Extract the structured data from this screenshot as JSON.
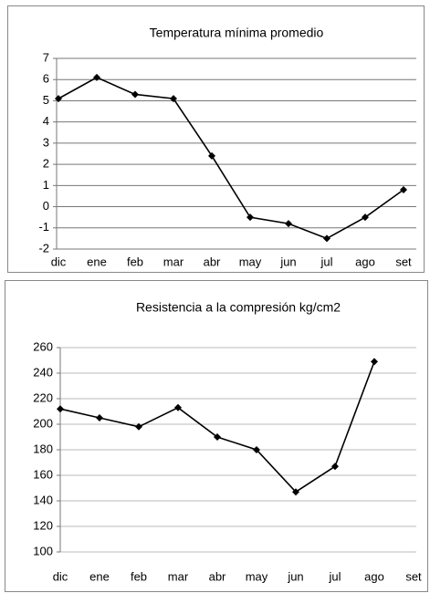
{
  "chart_data": [
    {
      "type": "line",
      "title": "Temperatura mínima promedio",
      "categories": [
        "dic",
        "ene",
        "feb",
        "mar",
        "abr",
        "may",
        "jun",
        "jul",
        "ago",
        "set"
      ],
      "series": [
        {
          "name": "Temperatura mínima promedio",
          "color": "#000000",
          "values": [
            5.1,
            6.1,
            5.3,
            5.1,
            2.4,
            -0.5,
            -0.8,
            -1.5,
            -0.5,
            0.8
          ]
        }
      ],
      "ylim": [
        -2,
        7
      ],
      "yticks": [
        -2,
        -1,
        0,
        1,
        2,
        3,
        4,
        5,
        6,
        7
      ],
      "grid": true
    },
    {
      "type": "line",
      "title": "Resistencia a la compresión kg/cm2",
      "categories": [
        "dic",
        "ene",
        "feb",
        "mar",
        "abr",
        "may",
        "jun",
        "jul",
        "ago",
        "set"
      ],
      "series": [
        {
          "name": "Resistencia a la compresión kg/cm2",
          "color": "#000000",
          "values": [
            212,
            205,
            198,
            213,
            190,
            180,
            147,
            167,
            249,
            null
          ]
        }
      ],
      "ylim": [
        100,
        260
      ],
      "yticks": [
        100,
        120,
        140,
        160,
        180,
        200,
        220,
        240,
        260
      ],
      "grid": true
    }
  ]
}
